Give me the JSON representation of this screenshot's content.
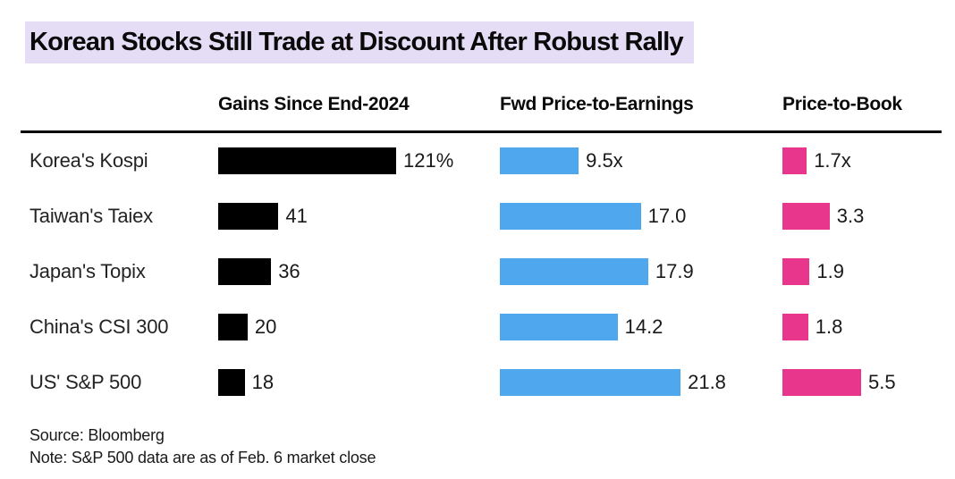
{
  "title": "Korean Stocks Still Trade at Discount After Robust Rally",
  "source_line": "Source: Bloomberg",
  "note_line": "Note: S&P 500 data are as of Feb. 6 market close",
  "colors": {
    "title_highlight": "#e5ddf6",
    "gains_bar": "#000000",
    "pe_bar": "#4fa8ee",
    "pb_bar": "#e9368d"
  },
  "chart_data": {
    "type": "bar",
    "orientation": "horizontal",
    "categories": [
      "Korea's Kospi",
      "Taiwan's Taiex",
      "Japan's Topix",
      "China's CSI 300",
      "US' S&P 500"
    ],
    "series": [
      {
        "name": "Gains Since End-2024",
        "values": [
          121,
          41,
          36,
          20,
          18
        ],
        "labels": [
          "121%",
          "41",
          "36",
          "20",
          "18"
        ],
        "color": "#000000"
      },
      {
        "name": "Fwd Price-to-Earnings",
        "values": [
          9.5,
          17.0,
          17.9,
          14.2,
          21.8
        ],
        "labels": [
          "9.5x",
          "17.0",
          "17.9",
          "14.2",
          "21.8"
        ],
        "color": "#4fa8ee"
      },
      {
        "name": "Price-to-Book",
        "values": [
          1.7,
          3.3,
          1.9,
          1.8,
          5.5
        ],
        "labels": [
          "1.7x",
          "3.3",
          "1.9",
          "1.8",
          "5.5"
        ],
        "color": "#e9368d"
      }
    ],
    "legend_position": "none",
    "grid": false
  }
}
